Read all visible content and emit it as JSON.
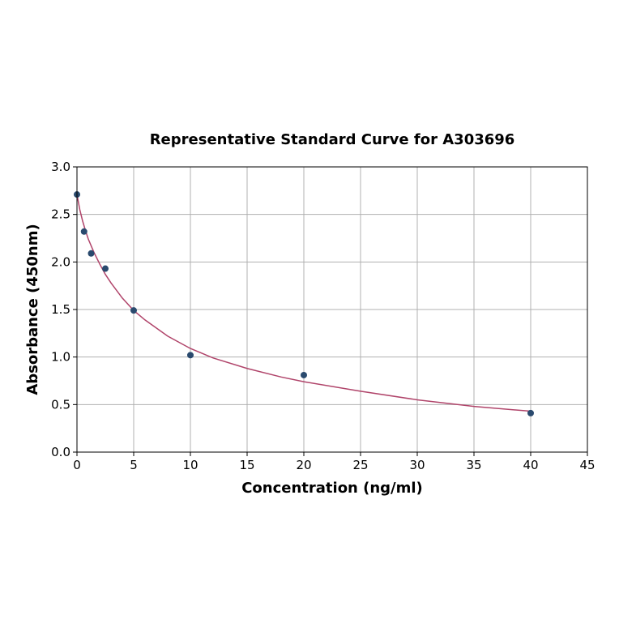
{
  "chart_data": {
    "type": "scatter",
    "title": "Representative Standard Curve for A303696",
    "xlabel": "Concentration (ng/ml)",
    "ylabel": "Absorbance (450nm)",
    "xlim": [
      0,
      45
    ],
    "ylim": [
      0,
      3.0
    ],
    "xticks": [
      "0",
      "5",
      "10",
      "15",
      "20",
      "25",
      "30",
      "35",
      "40",
      "45"
    ],
    "yticks": [
      "0.0",
      "0.5",
      "1.0",
      "1.5",
      "2.0",
      "2.5",
      "3.0"
    ],
    "grid": true,
    "series": [
      {
        "kind": "points",
        "x": [
          0,
          0.625,
          1.25,
          2.5,
          5,
          10,
          20,
          40
        ],
        "y": [
          2.71,
          2.32,
          2.09,
          1.93,
          1.49,
          1.02,
          0.81,
          0.41
        ]
      },
      {
        "kind": "fit-curve",
        "x": [
          0,
          0.25,
          0.5,
          0.75,
          1,
          1.5,
          2,
          2.5,
          3,
          4,
          5,
          6,
          8,
          10,
          12,
          15,
          18,
          20,
          25,
          30,
          35,
          40
        ],
        "y": [
          2.71,
          2.55,
          2.43,
          2.33,
          2.24,
          2.1,
          1.98,
          1.87,
          1.78,
          1.62,
          1.49,
          1.39,
          1.22,
          1.09,
          0.99,
          0.88,
          0.79,
          0.74,
          0.64,
          0.55,
          0.48,
          0.43
        ]
      }
    ],
    "colors": {
      "points": "#2a4a6e",
      "curve": "#b0446a",
      "grid": "#b0b0b0"
    }
  }
}
